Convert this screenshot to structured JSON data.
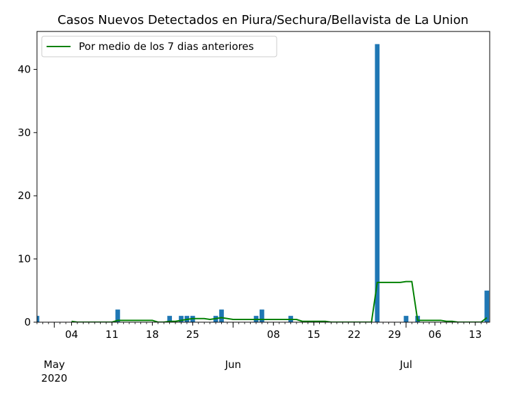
{
  "chart_data": {
    "type": "bar",
    "title": "Casos Nuevos Detectados en Piura/Sechura/Bellavista de La Union",
    "xlabel": "",
    "ylabel": "",
    "x_start": "2020-04-28",
    "x_end": "2020-07-15",
    "ylim": [
      0,
      46
    ],
    "yticks": [
      0,
      10,
      20,
      30,
      40
    ],
    "xticks_minor": [
      {
        "date": "2020-05-04",
        "label": "04"
      },
      {
        "date": "2020-05-11",
        "label": "11"
      },
      {
        "date": "2020-05-18",
        "label": "18"
      },
      {
        "date": "2020-05-25",
        "label": "25"
      },
      {
        "date": "2020-06-08",
        "label": "08"
      },
      {
        "date": "2020-06-15",
        "label": "15"
      },
      {
        "date": "2020-06-22",
        "label": "22"
      },
      {
        "date": "2020-06-29",
        "label": "29"
      },
      {
        "date": "2020-07-06",
        "label": "06"
      },
      {
        "date": "2020-07-13",
        "label": "13"
      }
    ],
    "xticks_major": [
      {
        "date": "2020-05-01",
        "label": "May",
        "sublabel": "2020"
      },
      {
        "date": "2020-06-01",
        "label": "Jun",
        "sublabel": ""
      },
      {
        "date": "2020-07-01",
        "label": "Jul",
        "sublabel": ""
      }
    ],
    "grid": false,
    "legend": {
      "position": "top-left"
    },
    "series": [
      {
        "kind": "bar",
        "color": "#1f77b4",
        "points": [
          {
            "x": "2020-04-28",
            "y": 1
          },
          {
            "x": "2020-05-12",
            "y": 2
          },
          {
            "x": "2020-05-21",
            "y": 1
          },
          {
            "x": "2020-05-23",
            "y": 1
          },
          {
            "x": "2020-05-24",
            "y": 1
          },
          {
            "x": "2020-05-25",
            "y": 1
          },
          {
            "x": "2020-05-29",
            "y": 1
          },
          {
            "x": "2020-05-30",
            "y": 2
          },
          {
            "x": "2020-06-05",
            "y": 1
          },
          {
            "x": "2020-06-06",
            "y": 2
          },
          {
            "x": "2020-06-11",
            "y": 1
          },
          {
            "x": "2020-06-26",
            "y": 44
          },
          {
            "x": "2020-07-01",
            "y": 1
          },
          {
            "x": "2020-07-03",
            "y": 1
          },
          {
            "x": "2020-07-15",
            "y": 5
          }
        ]
      },
      {
        "kind": "line",
        "name": "Por medio de los 7 dias anteriores",
        "color": "#008000",
        "points": [
          {
            "x": "2020-05-04",
            "y": 0.14
          },
          {
            "x": "2020-05-05",
            "y": 0.0
          },
          {
            "x": "2020-05-11",
            "y": 0.0
          },
          {
            "x": "2020-05-12",
            "y": 0.29
          },
          {
            "x": "2020-05-18",
            "y": 0.29
          },
          {
            "x": "2020-05-19",
            "y": 0.0
          },
          {
            "x": "2020-05-20",
            "y": 0.0
          },
          {
            "x": "2020-05-21",
            "y": 0.14
          },
          {
            "x": "2020-05-22",
            "y": 0.14
          },
          {
            "x": "2020-05-23",
            "y": 0.29
          },
          {
            "x": "2020-05-24",
            "y": 0.43
          },
          {
            "x": "2020-05-25",
            "y": 0.57
          },
          {
            "x": "2020-05-27",
            "y": 0.57
          },
          {
            "x": "2020-05-28",
            "y": 0.43
          },
          {
            "x": "2020-05-29",
            "y": 0.57
          },
          {
            "x": "2020-05-30",
            "y": 0.71
          },
          {
            "x": "2020-06-01",
            "y": 0.43
          },
          {
            "x": "2020-06-05",
            "y": 0.43
          },
          {
            "x": "2020-06-06",
            "y": 0.43
          },
          {
            "x": "2020-06-11",
            "y": 0.43
          },
          {
            "x": "2020-06-12",
            "y": 0.43
          },
          {
            "x": "2020-06-13",
            "y": 0.14
          },
          {
            "x": "2020-06-17",
            "y": 0.14
          },
          {
            "x": "2020-06-18",
            "y": 0.0
          },
          {
            "x": "2020-06-25",
            "y": 0.0
          },
          {
            "x": "2020-06-26",
            "y": 6.29
          },
          {
            "x": "2020-06-30",
            "y": 6.29
          },
          {
            "x": "2020-07-01",
            "y": 6.43
          },
          {
            "x": "2020-07-02",
            "y": 6.43
          },
          {
            "x": "2020-07-03",
            "y": 0.29
          },
          {
            "x": "2020-07-07",
            "y": 0.29
          },
          {
            "x": "2020-07-08",
            "y": 0.14
          },
          {
            "x": "2020-07-09",
            "y": 0.14
          },
          {
            "x": "2020-07-10",
            "y": 0.0
          },
          {
            "x": "2020-07-14",
            "y": 0.0
          },
          {
            "x": "2020-07-15",
            "y": 0.71
          }
        ]
      }
    ]
  }
}
